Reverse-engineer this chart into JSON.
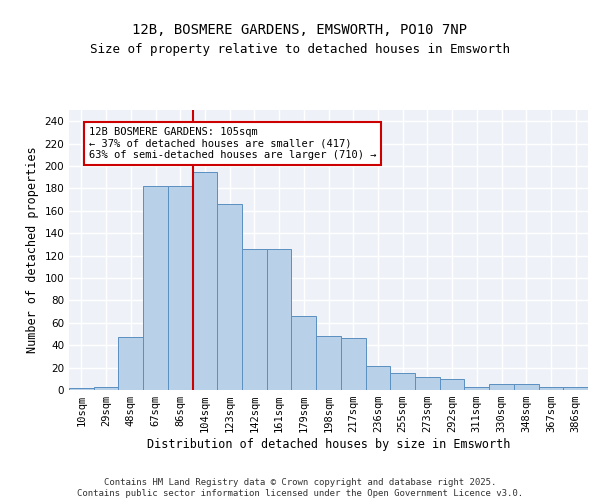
{
  "title1": "12B, BOSMERE GARDENS, EMSWORTH, PO10 7NP",
  "title2": "Size of property relative to detached houses in Emsworth",
  "xlabel": "Distribution of detached houses by size in Emsworth",
  "ylabel": "Number of detached properties",
  "categories": [
    "10sqm",
    "29sqm",
    "48sqm",
    "67sqm",
    "86sqm",
    "104sqm",
    "123sqm",
    "142sqm",
    "161sqm",
    "179sqm",
    "198sqm",
    "217sqm",
    "236sqm",
    "255sqm",
    "273sqm",
    "292sqm",
    "311sqm",
    "330sqm",
    "348sqm",
    "367sqm",
    "386sqm"
  ],
  "values": [
    2,
    3,
    47,
    182,
    182,
    195,
    166,
    126,
    126,
    66,
    48,
    46,
    21,
    15,
    12,
    10,
    3,
    5,
    5,
    3,
    3
  ],
  "bar_color": "#b8d0e8",
  "bar_edge_color": "#5a8fc0",
  "bg_color": "#eef2f8",
  "grid_color": "#ffffff",
  "vline_x": 4.5,
  "vline_color": "#cc0000",
  "annotation_box_text": "12B BOSMERE GARDENS: 105sqm\n← 37% of detached houses are smaller (417)\n63% of semi-detached houses are larger (710) →",
  "annotation_box_color": "#cc0000",
  "annotation_box_facecolor": "#ffffff",
  "ylim": [
    0,
    250
  ],
  "yticks": [
    0,
    20,
    40,
    60,
    80,
    100,
    120,
    140,
    160,
    180,
    200,
    220,
    240
  ],
  "footer": "Contains HM Land Registry data © Crown copyright and database right 2025.\nContains public sector information licensed under the Open Government Licence v3.0.",
  "title1_fontsize": 10,
  "title2_fontsize": 9,
  "xlabel_fontsize": 8.5,
  "ylabel_fontsize": 8.5,
  "tick_fontsize": 7.5,
  "footer_fontsize": 6.5,
  "annot_fontsize": 7.5
}
